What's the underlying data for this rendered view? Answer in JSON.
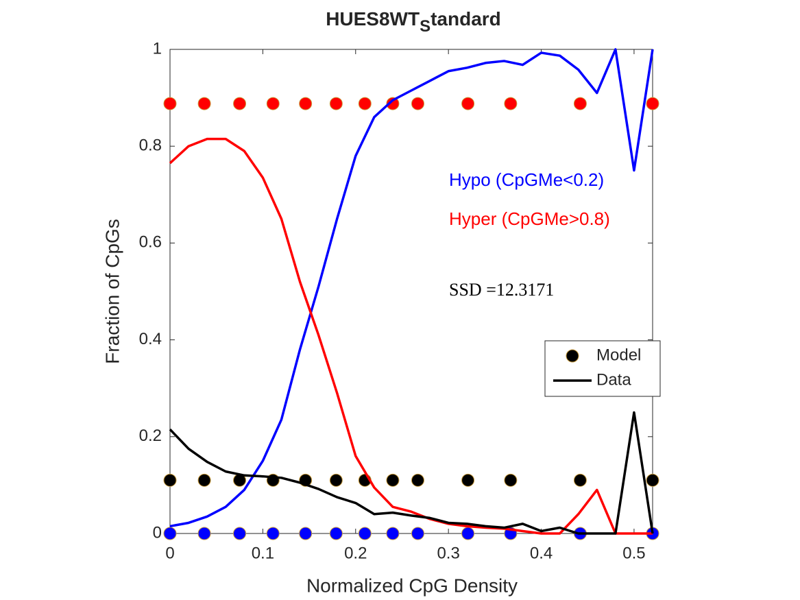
{
  "chart_data": {
    "type": "line",
    "title": [
      "HUES8WT",
      "S",
      "tandard"
    ],
    "xlabel": "Normalized CpG Density",
    "ylabel": "Fraction of CpGs",
    "x": [
      0,
      0.02,
      0.04,
      0.06,
      0.08,
      0.1,
      0.12,
      0.14,
      0.16,
      0.18,
      0.2,
      0.22,
      0.24,
      0.26,
      0.28,
      0.3,
      0.32,
      0.34,
      0.36,
      0.38,
      0.4,
      0.42,
      0.44,
      0.46,
      0.48,
      0.5,
      0.52
    ],
    "series": [
      {
        "color": "#0000ff",
        "values": [
          0.015,
          0.022,
          0.035,
          0.055,
          0.09,
          0.15,
          0.235,
          0.38,
          0.51,
          0.65,
          0.78,
          0.86,
          0.895,
          0.915,
          0.935,
          0.955,
          0.962,
          0.972,
          0.976,
          0.968,
          0.993,
          0.987,
          0.958,
          0.91,
          1.0,
          0.75,
          1.0
        ]
      },
      {
        "color": "#ff0000",
        "values": [
          0.765,
          0.8,
          0.815,
          0.815,
          0.79,
          0.735,
          0.65,
          0.52,
          0.41,
          0.29,
          0.16,
          0.095,
          0.055,
          0.045,
          0.03,
          0.02,
          0.015,
          0.012,
          0.01,
          0.005,
          0,
          0,
          0.04,
          0.09,
          0,
          0,
          0
        ]
      },
      {
        "name": "Data",
        "color": "#000000",
        "values": [
          0.215,
          0.175,
          0.148,
          0.128,
          0.12,
          0.118,
          0.115,
          0.105,
          0.092,
          0.075,
          0.063,
          0.04,
          0.043,
          0.037,
          0.032,
          0.022,
          0.02,
          0.015,
          0.012,
          0.02,
          0.005,
          0.012,
          0,
          0,
          0,
          0.25,
          0
        ]
      }
    ],
    "markers": {
      "x": [
        0,
        0.037,
        0.075,
        0.111,
        0.146,
        0.179,
        0.21,
        0.24,
        0.267,
        0.321,
        0.367,
        0.442,
        0.52
      ],
      "edge_color": "#c89b3c",
      "series": [
        {
          "color": "#ff0000",
          "values": [
            0.888,
            0.888,
            0.888,
            0.888,
            0.888,
            0.888,
            0.888,
            0.888,
            0.888,
            0.888,
            0.888,
            0.888,
            0.888
          ]
        },
        {
          "name": "Model",
          "color": "#000000",
          "values": [
            0.11,
            0.11,
            0.11,
            0.11,
            0.11,
            0.11,
            0.11,
            0.11,
            0.11,
            0.11,
            0.11,
            0.11,
            0.11
          ]
        },
        {
          "color": "#0000ff",
          "values": [
            0,
            0,
            0,
            0,
            0,
            0,
            0,
            0,
            0,
            0,
            0,
            0,
            0
          ]
        }
      ]
    },
    "annotations": [
      {
        "text": "Hypo (CpGMe<0.2)",
        "color": "#0000ff"
      },
      {
        "text": "Hyper (CpGMe>0.8)",
        "color": "#ff0000"
      },
      {
        "text": "SSD =12.3171",
        "color": "#000000"
      }
    ],
    "xlim": [
      0,
      0.52
    ],
    "ylim": [
      0,
      1
    ],
    "xticks": [
      0,
      0.1,
      0.2,
      0.3,
      0.4,
      0.5
    ],
    "yticks": [
      0,
      0.2,
      0.4,
      0.6,
      0.8,
      1
    ],
    "legend": "east"
  }
}
